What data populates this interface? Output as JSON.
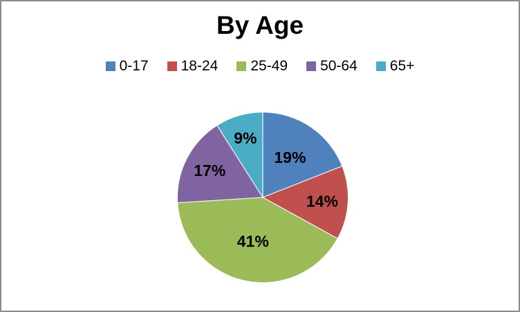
{
  "frame": {
    "background": "#FFFFFF",
    "border_color": "#8A8A8A"
  },
  "chart_data": {
    "type": "pie",
    "title": "By Age",
    "categories": [
      "0-17",
      "18-24",
      "25-49",
      "50-64",
      "65+"
    ],
    "values": [
      19,
      14,
      41,
      17,
      9
    ],
    "labels": [
      "19%",
      "14%",
      "41%",
      "17%",
      "9%"
    ],
    "colors": [
      "#4F81BD",
      "#C0504D",
      "#9BBB59",
      "#8064A2",
      "#4BACC6"
    ],
    "label_color": "#000000",
    "title_color": "#000000",
    "legend_position": "top",
    "start_angle_deg": 0,
    "direction": "clockwise"
  }
}
